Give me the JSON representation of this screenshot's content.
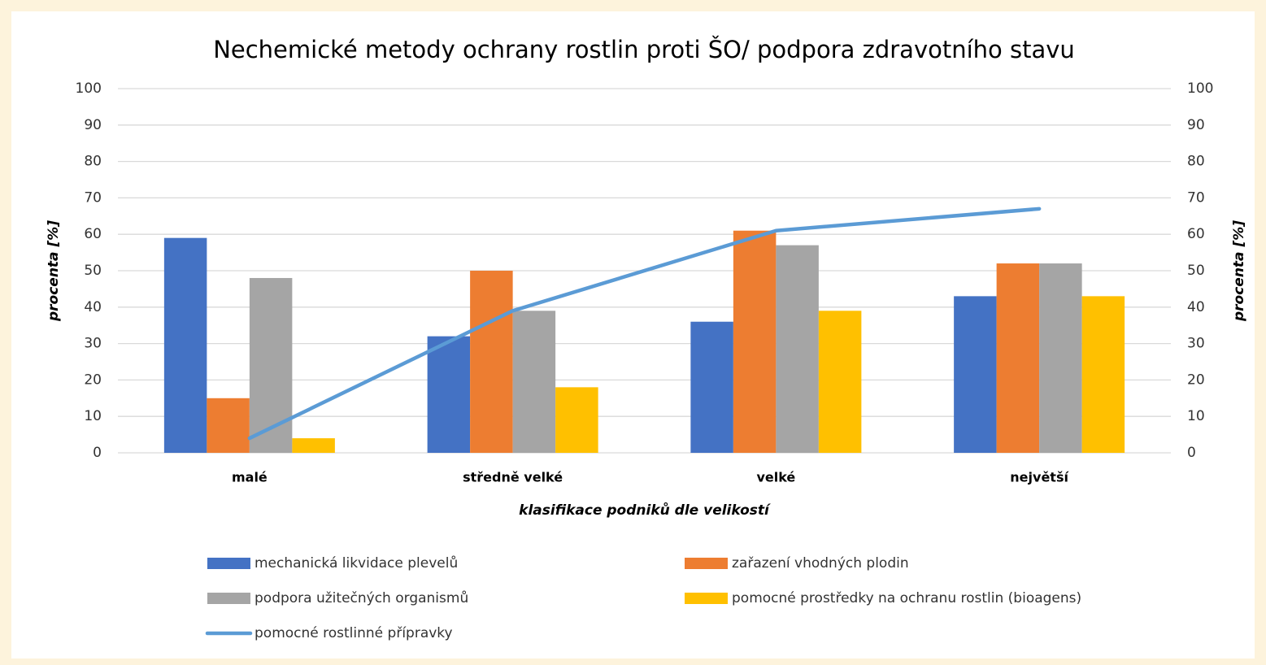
{
  "chart_data": {
    "type": "bar",
    "title": "Nechemické metody ochrany rostlin proti ŠO/ podpora zdravotního stavu",
    "x_label": "klasifikace podniků dle velikostí",
    "y_label": "procenta  [%]",
    "y2_label": "procenta  [%]",
    "categories": [
      "malé",
      "středně velké",
      "velké",
      "největší"
    ],
    "series": [
      {
        "name": "mechanická likvidace plevelů",
        "type": "bar",
        "color": "#4472c4",
        "values": [
          59,
          32,
          36,
          43
        ]
      },
      {
        "name": "zařazení vhodných plodin",
        "type": "bar",
        "color": "#ed7d31",
        "values": [
          15,
          50,
          61,
          52
        ]
      },
      {
        "name": "podpora užitečných organismů",
        "type": "bar",
        "color": "#a5a5a5",
        "values": [
          48,
          39,
          57,
          52
        ]
      },
      {
        "name": "pomocné prostředky na ochranu rostlin (bioagens)",
        "type": "bar",
        "color": "#ffc000",
        "values": [
          4,
          18,
          39,
          43
        ]
      },
      {
        "name": "pomocné rostlinné přípravky",
        "type": "line",
        "axis": "y2",
        "color": "#5b9bd5",
        "values": [
          4,
          39,
          61,
          67
        ]
      }
    ],
    "ylim": [
      0,
      100
    ],
    "yticks": [
      0,
      10,
      20,
      30,
      40,
      50,
      60,
      70,
      80,
      90,
      100
    ],
    "y2lim": [
      0,
      100
    ],
    "y2ticks": [
      0,
      10,
      20,
      30,
      40,
      50,
      60,
      70,
      80,
      90,
      100
    ],
    "grid": true,
    "legend": "bottom"
  }
}
